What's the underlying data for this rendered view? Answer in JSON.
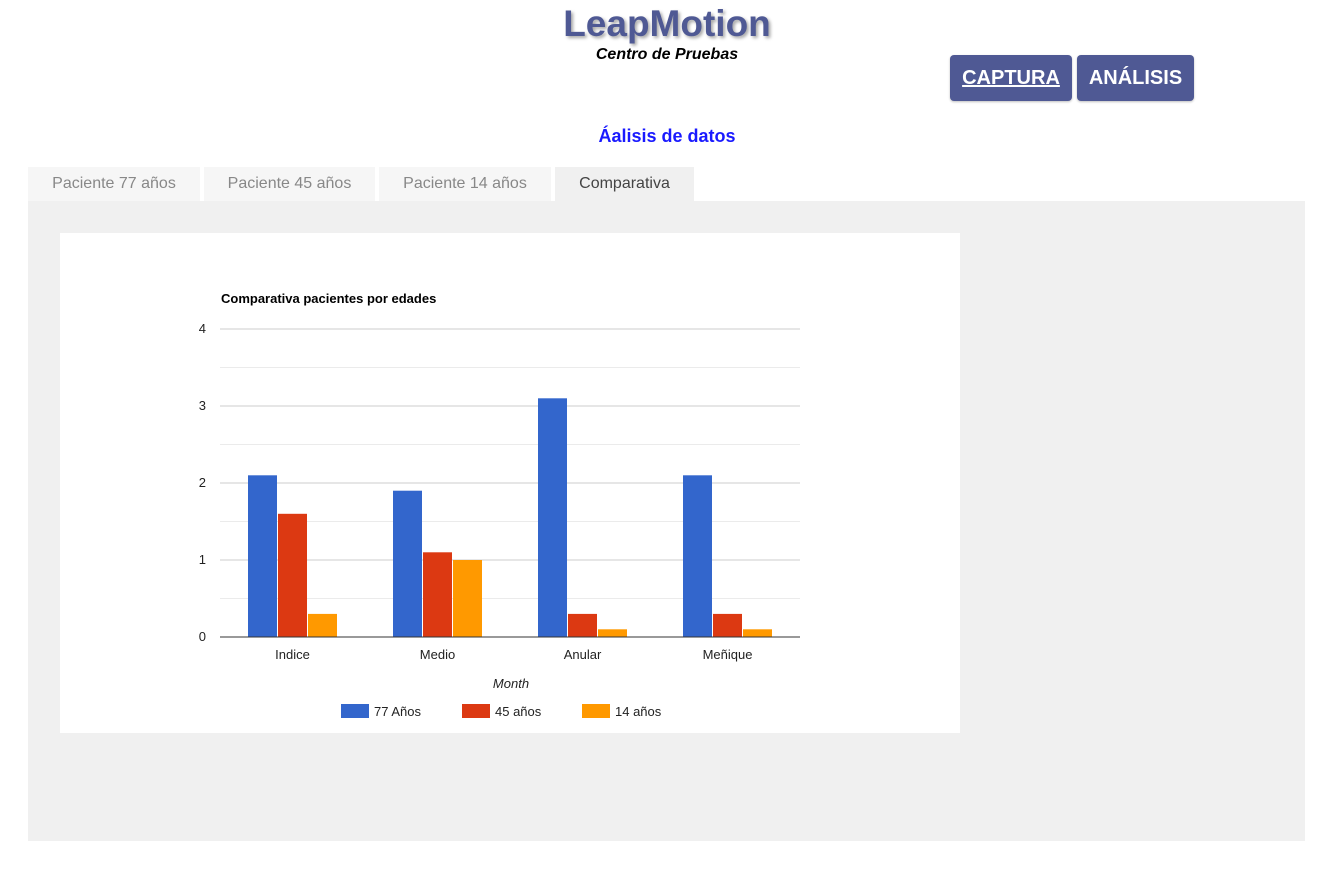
{
  "header": {
    "title": "LeapMotion",
    "subtitle": "Centro de Pruebas"
  },
  "nav": {
    "captura_label": "CAPTURA",
    "analisis_label": "ANÁLISIS"
  },
  "section_title": "Áalisis de datos",
  "tabs": [
    {
      "label": "Paciente 77 años",
      "active": false
    },
    {
      "label": "Paciente 45 años",
      "active": false
    },
    {
      "label": "Paciente 14 años",
      "active": false
    },
    {
      "label": "Comparativa",
      "active": true
    }
  ],
  "colors": {
    "brand": "#4f5994",
    "section_title": "#1a1aff",
    "panel_bg": "#f0f0f0"
  },
  "chart_data": {
    "type": "bar",
    "title": "Comparativa pacientes por edades",
    "xlabel": "Month",
    "ylabel": "",
    "categories": [
      "Indice",
      "Medio",
      "Anular",
      "Meñique"
    ],
    "series": [
      {
        "name": "77 Años",
        "color": "#3366cc",
        "values": [
          2.1,
          1.9,
          3.1,
          2.1
        ]
      },
      {
        "name": "45 años",
        "color": "#dc3912",
        "values": [
          1.6,
          1.1,
          0.3,
          0.3
        ]
      },
      {
        "name": "14 años",
        "color": "#ff9900",
        "values": [
          0.3,
          1.0,
          0.1,
          0.1
        ]
      }
    ],
    "ylim": [
      0,
      4
    ],
    "yticks": [
      "0",
      "1",
      "2",
      "3",
      "4"
    ],
    "grid": true,
    "legend_position": "bottom"
  }
}
